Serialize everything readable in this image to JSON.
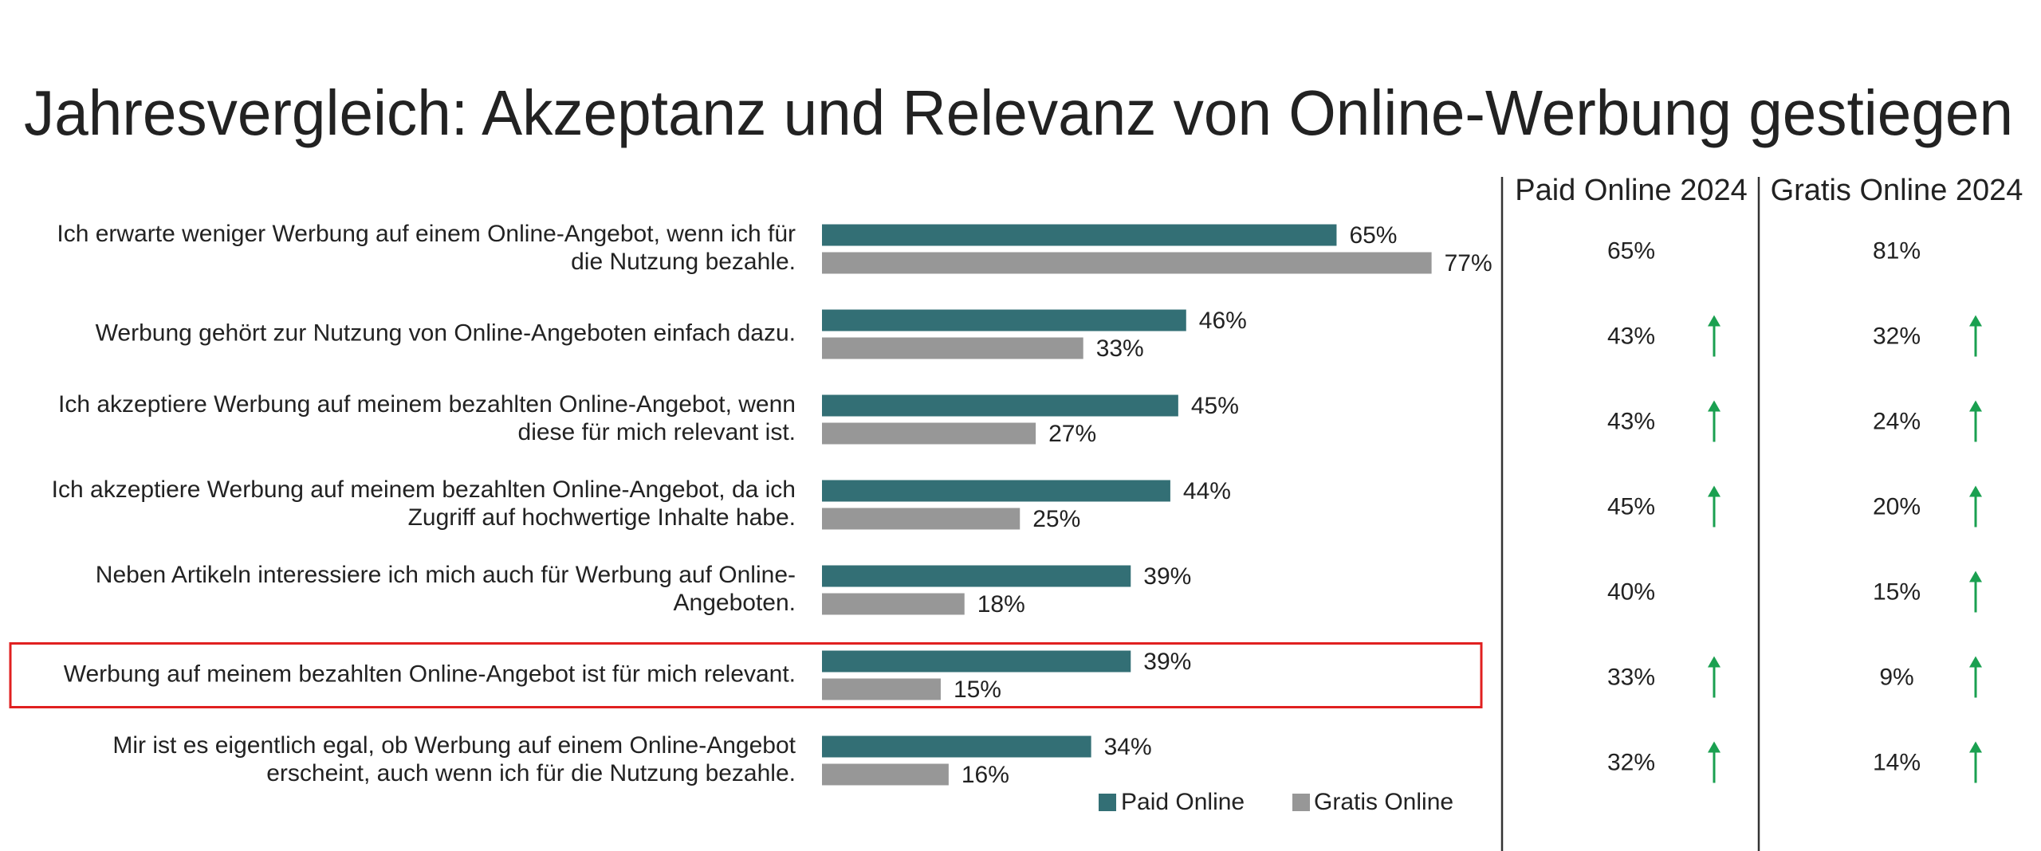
{
  "chart_data": {
    "type": "bar",
    "orientation": "horizontal",
    "title": "Jahresvergleich: Akzeptanz und Relevanz von Online-Werbung gestiegen",
    "categories": [
      [
        "Ich erwarte weniger Werbung auf einem Online-Angebot, wenn ich für",
        "die Nutzung bezahle."
      ],
      [
        "Werbung gehört zur Nutzung von Online-Angeboten einfach dazu."
      ],
      [
        "Ich akzeptiere Werbung auf meinem bezahlten Online-Angebot, wenn",
        "diese für mich relevant ist."
      ],
      [
        "Ich akzeptiere Werbung auf meinem bezahlten Online-Angebot, da ich",
        "Zugriff auf hochwertige Inhalte habe."
      ],
      [
        "Neben Artikeln interessiere ich mich auch für Werbung auf Online-",
        "Angeboten."
      ],
      [
        "Werbung auf meinem bezahlten Online-Angebot ist für mich relevant."
      ],
      [
        "Mir ist es eigentlich egal, ob Werbung auf einem Online-Angebot",
        "erscheint, auch wenn ich für die Nutzung bezahle."
      ]
    ],
    "series": [
      {
        "name": "Paid Online",
        "color": "#336f75",
        "values": [
          65,
          46,
          45,
          44,
          39,
          39,
          34
        ],
        "value_labels": [
          "65%",
          "46%",
          "45%",
          "44%",
          "39%",
          "39%",
          "34%"
        ]
      },
      {
        "name": "Gratis Online",
        "color": "#979797",
        "values": [
          77,
          33,
          27,
          25,
          18,
          15,
          16
        ],
        "value_labels": [
          "77%",
          "33%",
          "27%",
          "25%",
          "18%",
          "15%",
          "16%"
        ]
      }
    ],
    "xlim": [
      0,
      100
    ],
    "highlighted_category": 5,
    "highlight_color": "#e02020",
    "comparison": {
      "arrow_color": "#1aa050",
      "columns": [
        {
          "name": "Paid Online 2024",
          "color": "#3d7a80",
          "header_color": "#336f75",
          "values": [
            65,
            43,
            43,
            45,
            40,
            33,
            32
          ],
          "value_labels": [
            "65%",
            "43%",
            "43%",
            "45%",
            "40%",
            "33%",
            "32%"
          ],
          "arrows": [
            false,
            true,
            true,
            true,
            false,
            true,
            true
          ]
        },
        {
          "name": "Gratis Online 2024",
          "color": "#9a9a9a",
          "header_color": "#444444",
          "values": [
            81,
            32,
            24,
            20,
            15,
            9,
            14
          ],
          "value_labels": [
            "81%",
            "32%",
            "24%",
            "20%",
            "15%",
            "9%",
            "14%"
          ],
          "arrows": [
            false,
            true,
            true,
            true,
            true,
            true,
            true
          ]
        }
      ]
    }
  }
}
